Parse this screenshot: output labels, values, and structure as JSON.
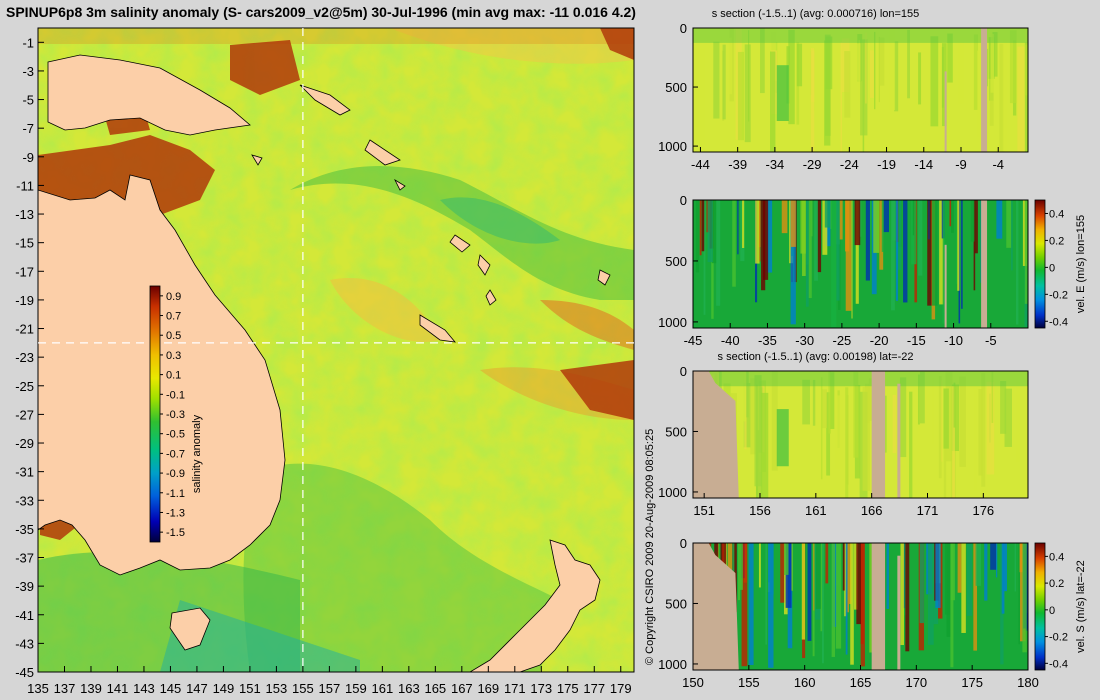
{
  "page_title": "SPINUP6p8 3m salinity anomaly (S- cars2009_v2@5m) 30-Jul-1996 (min avg max: -11 0.016 4.2)",
  "copyright": "© Copyright CSIRO 2009   20-Aug-2009 08:05:25",
  "colors": {
    "background": "#d6d6d6",
    "land": "#fccfa8",
    "section_land": "#c8ad93",
    "scale_stops": [
      "#00003c",
      "#0000b4",
      "#0050dc",
      "#00a0c8",
      "#00c080",
      "#30c030",
      "#a0e000",
      "#e8e800",
      "#f0c000",
      "#e07000",
      "#c83000",
      "#6a0000"
    ]
  },
  "chart_data": [
    {
      "id": "map",
      "type": "heatmap",
      "title": "SPINUP6p8 3m salinity anomaly (S- cars2009_v2@5m) 30-Jul-1996 (min avg max: -11 0.016 4.2)",
      "x_ticks": [
        "135",
        "137",
        "139",
        "141",
        "143",
        "145",
        "147",
        "149",
        "151",
        "153",
        "155",
        "157",
        "159",
        "161",
        "163",
        "165",
        "167",
        "169",
        "171",
        "173",
        "175",
        "177",
        "179"
      ],
      "y_ticks": [
        "-1",
        "-3",
        "-5",
        "-7",
        "-9",
        "-11",
        "-13",
        "-15",
        "-17",
        "-19",
        "-21",
        "-23",
        "-25",
        "-27",
        "-29",
        "-31",
        "-33",
        "-35",
        "-37",
        "-39",
        "-41",
        "-43",
        "-45"
      ],
      "xlim": [
        135,
        180
      ],
      "ylim": [
        -45,
        0
      ],
      "crosshair": {
        "lon": 155,
        "lat": -22
      },
      "colorbar": {
        "label": "salinity anomaly",
        "ticks": [
          "0.9",
          "0.7",
          "0.5",
          "0.3",
          "0.1",
          "-0.1",
          "-0.3",
          "-0.5",
          "-0.7",
          "-0.9",
          "-1.1",
          "-1.3",
          "-1.5"
        ],
        "range": [
          -1.6,
          1.0
        ]
      }
    },
    {
      "id": "sec1",
      "type": "heatmap",
      "title": "s section (-1.5..1) (avg: 0.000716) lon=155",
      "x_ticks": [
        "-44",
        "-39",
        "-34",
        "-29",
        "-24",
        "-19",
        "-14",
        "-9",
        "-4"
      ],
      "xlim": [
        -45,
        0
      ],
      "y_ticks": [
        "0",
        "500",
        "1000"
      ],
      "ylim": [
        0,
        1050
      ]
    },
    {
      "id": "sec2",
      "type": "heatmap",
      "title": "",
      "x_ticks": [
        "-45",
        "-40",
        "-35",
        "-30",
        "-25",
        "-20",
        "-15",
        "-10",
        "-5"
      ],
      "xlim": [
        -45,
        0
      ],
      "y_ticks": [
        "0",
        "500",
        "1000"
      ],
      "ylim": [
        0,
        1050
      ],
      "colorbar": {
        "label": "vel. E (m/s) lon=155",
        "ticks": [
          "0.4",
          "0.2",
          "0",
          "-0.2",
          "-0.4"
        ],
        "range": [
          -0.45,
          0.5
        ]
      }
    },
    {
      "id": "sec3",
      "type": "heatmap",
      "title": "s section (-1.5..1) (avg: 0.00198) lat=-22",
      "x_ticks": [
        "151",
        "156",
        "161",
        "166",
        "171",
        "176"
      ],
      "xlim": [
        150,
        180
      ],
      "y_ticks": [
        "0",
        "500",
        "1000"
      ],
      "ylim": [
        0,
        1050
      ]
    },
    {
      "id": "sec4",
      "type": "heatmap",
      "title": "",
      "x_ticks": [
        "150",
        "155",
        "160",
        "165",
        "170",
        "175",
        "180"
      ],
      "xlim": [
        150,
        180
      ],
      "y_ticks": [
        "0",
        "500",
        "1000"
      ],
      "ylim": [
        0,
        1050
      ],
      "colorbar": {
        "label": "vel. S (m/s) lat=-22",
        "ticks": [
          "0.4",
          "0.2",
          "0",
          "-0.2",
          "-0.4"
        ],
        "range": [
          -0.45,
          0.5
        ]
      }
    }
  ]
}
